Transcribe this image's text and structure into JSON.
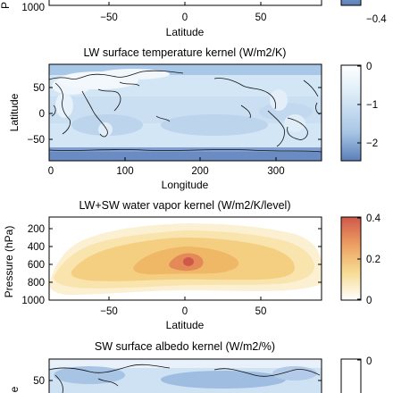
{
  "chart_data": [
    {
      "id": "top_partial",
      "type": "heatmap",
      "title": "",
      "xlabel": "Latitude",
      "ylabel": "Pressure (hPa)",
      "xlim": [
        -90,
        90
      ],
      "x_ticks": [
        "−50",
        "0",
        "50"
      ],
      "y_ticks": [
        "1000"
      ],
      "colorbar_ticks": [
        "−0.4"
      ]
    },
    {
      "id": "lw_surface_temp",
      "type": "heatmap",
      "title": "LW surface temperature kernel (W/m2/K)",
      "xlabel": "Longitude",
      "ylabel": "Latitude",
      "xlim": [
        0,
        360
      ],
      "ylim": [
        -90,
        90
      ],
      "x_ticks": [
        "0",
        "100",
        "200",
        "300"
      ],
      "y_ticks": [
        "50",
        "0",
        "−50"
      ],
      "colorbar": {
        "range": [
          -2.5,
          0
        ],
        "ticks": [
          "0",
          "−1",
          "−2"
        ]
      }
    },
    {
      "id": "lw_sw_water_vapor",
      "type": "heatmap",
      "title": "LW+SW water vapor kernel (W/m2/K/level)",
      "xlabel": "Latitude",
      "ylabel": "Pressure (hPa)",
      "xlim": [
        -90,
        90
      ],
      "ylim": [
        1000,
        100
      ],
      "x_ticks": [
        "−50",
        "0",
        "50"
      ],
      "y_ticks": [
        "200",
        "400",
        "600",
        "800",
        "1000"
      ],
      "colorbar": {
        "range": [
          0,
          0.4
        ],
        "ticks": [
          "0.4",
          "0.2",
          "0"
        ]
      }
    },
    {
      "id": "sw_surface_albedo",
      "type": "heatmap",
      "title": "SW surface albedo kernel (W/m2/%)",
      "ylabel": "Latitude",
      "y_ticks": [
        "50"
      ],
      "colorbar_ticks": [
        "0"
      ]
    }
  ],
  "colors": {
    "blue_deep": "#5a7fb8",
    "blue_light": "#cfe3f3",
    "red_deep": "#d0584a",
    "orange": "#f0c878",
    "yellow_light": "#fbeab8"
  }
}
